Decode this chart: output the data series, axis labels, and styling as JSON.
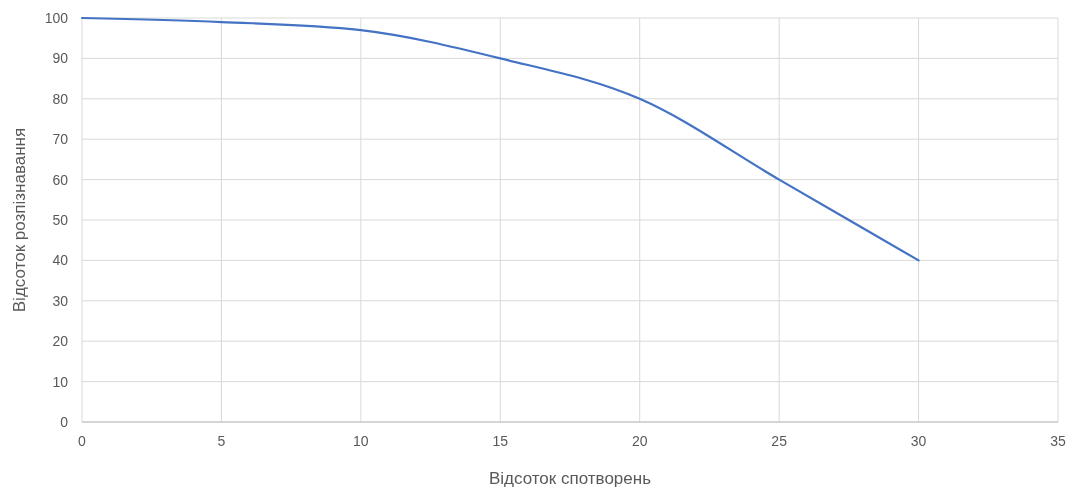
{
  "chart_data": {
    "type": "line",
    "xlabel": "Відсоток спотворень",
    "ylabel": "Відсоток розпізнавання",
    "x": [
      0,
      5,
      10,
      15,
      20,
      25,
      30
    ],
    "series": [
      {
        "color": "#4472c4",
        "values": [
          100,
          99,
          97,
          90,
          80,
          60,
          40
        ]
      }
    ],
    "xlim": [
      0,
      35
    ],
    "xticks": [
      0,
      5,
      10,
      15,
      20,
      25,
      30,
      35
    ],
    "ylim": [
      0,
      100
    ],
    "yticks": [
      0,
      10,
      20,
      30,
      40,
      50,
      60,
      70,
      80,
      90,
      100
    ],
    "grid": true,
    "marker": "none",
    "line_style": "solid"
  }
}
